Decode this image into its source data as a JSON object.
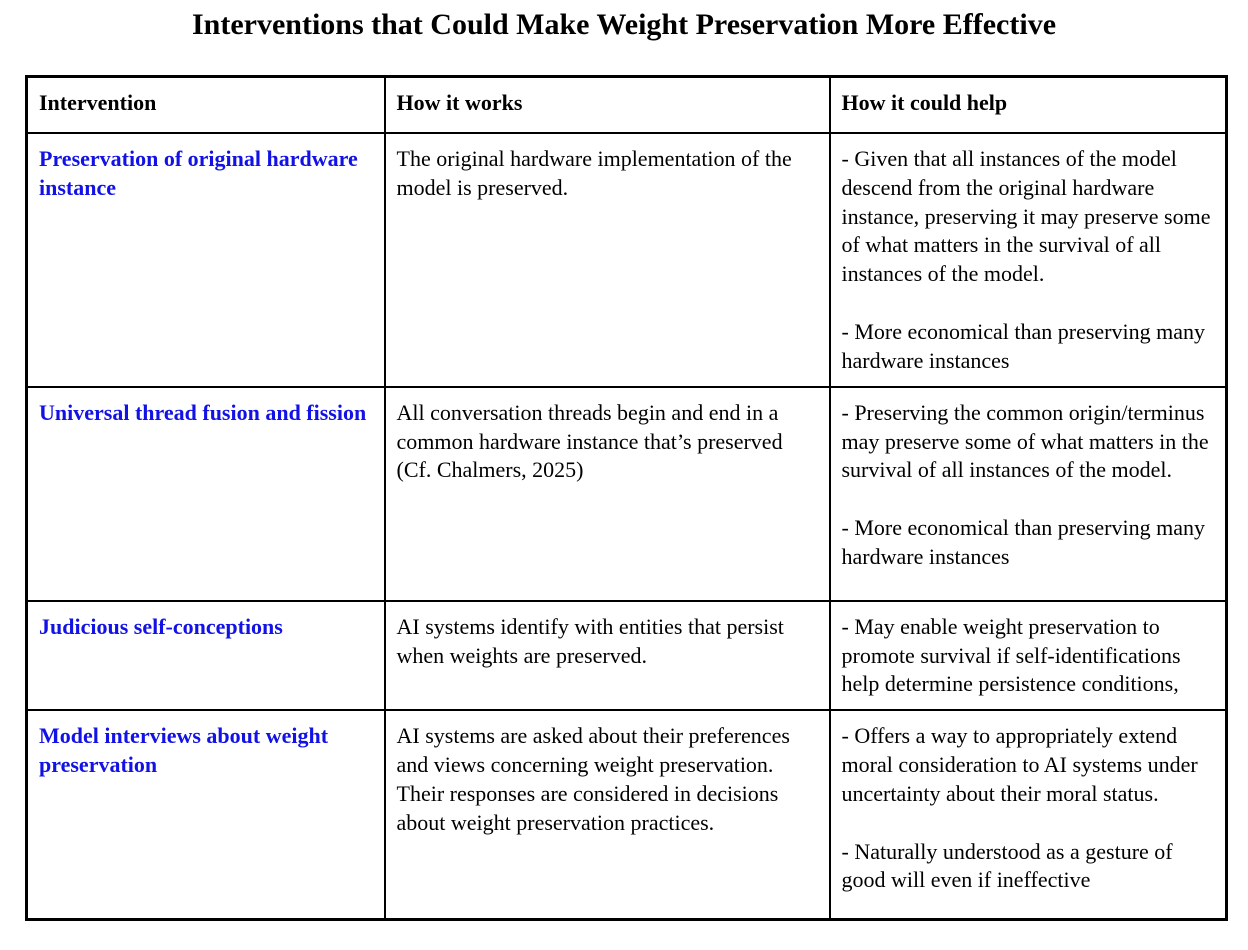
{
  "page": {
    "title": "Interventions that Could Make Weight Preservation More Effective"
  },
  "colors": {
    "intervention_link": "#1212e6",
    "border": "#000000",
    "text": "#000000",
    "background": "#ffffff"
  },
  "table": {
    "headers": {
      "intervention": "Intervention",
      "how_it_works": "How it works",
      "how_it_could_help": "How it could help"
    },
    "rows": [
      {
        "intervention": "Preservation of original hardware instance",
        "how_it_works": "The original hardware implementation of the model is preserved.",
        "help_points": [
          "- Given that all instances of the model descend from the original hardware instance, preserving it may preserve some of what matters in the survival of all instances of the model.",
          "- More economical than preserving many hardware instances"
        ]
      },
      {
        "intervention": "Universal thread fusion and fission",
        "how_it_works": "All conversation threads begin and end in a common hardware instance that’s preserved (Cf. Chalmers, 2025)",
        "help_points": [
          "- Preserving the common origin/terminus may preserve some of what matters in the survival of all instances of the model.",
          "- More economical than preserving many hardware instances"
        ]
      },
      {
        "intervention": "Judicious self-conceptions",
        "how_it_works": "AI systems identify with entities that persist when weights are preserved.",
        "help_points": [
          "- May enable weight preservation to promote survival if self-identifications help determine persistence conditions,"
        ]
      },
      {
        "intervention": "Model interviews about weight preservation",
        "how_it_works": "AI systems are asked about their preferences and views concerning weight preservation. Their responses are considered in decisions about weight preservation practices.",
        "help_points": [
          "- Offers a way to appropriately extend moral consideration to AI systems under uncertainty about their moral status.",
          "- Naturally understood as a gesture of good will even if ineffective"
        ]
      }
    ]
  }
}
